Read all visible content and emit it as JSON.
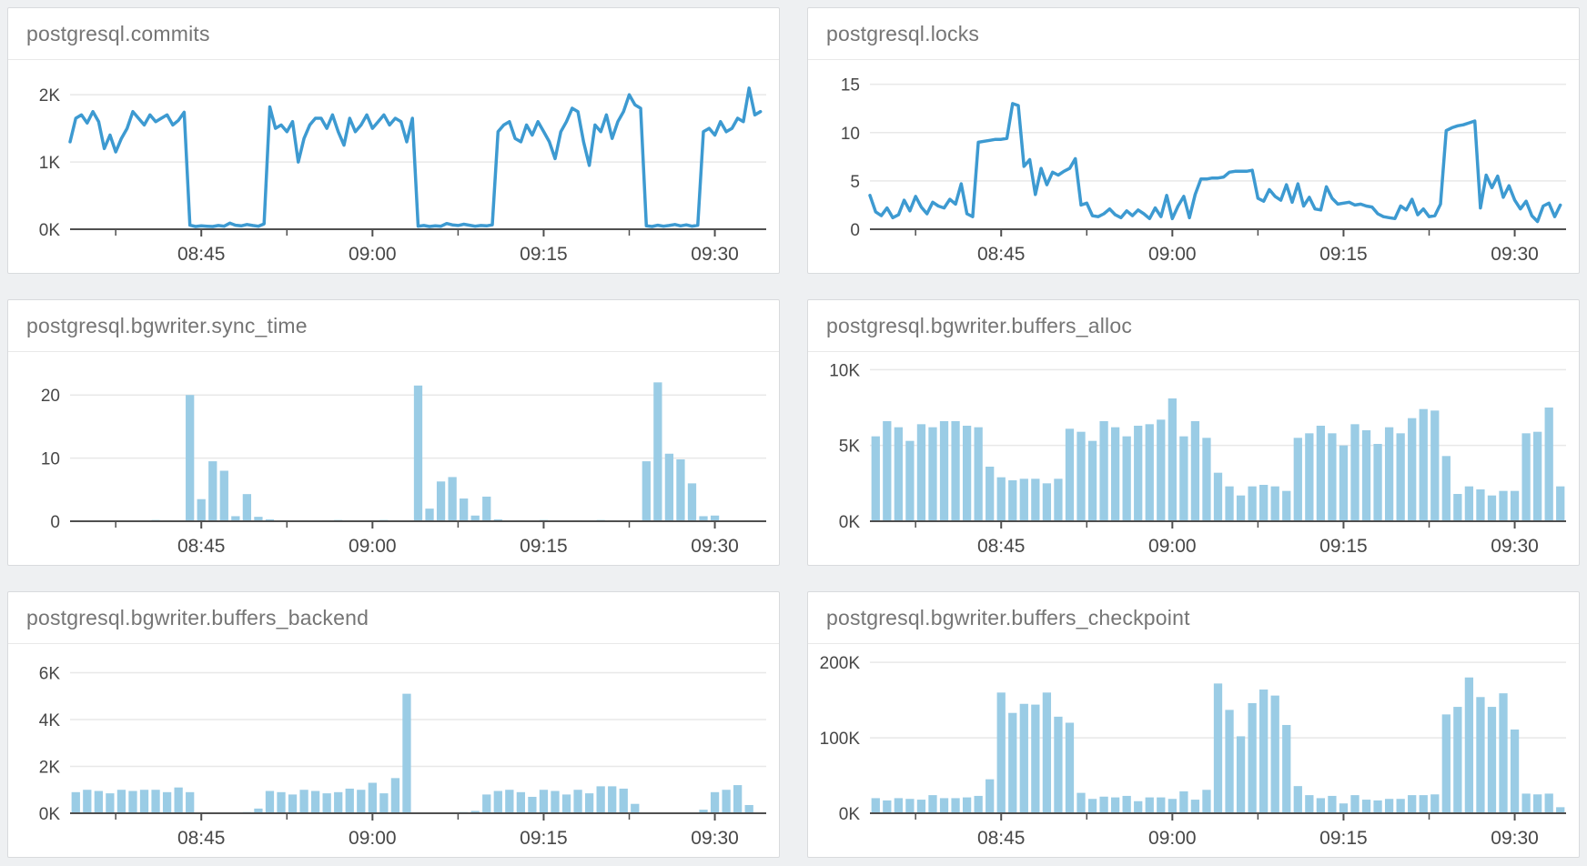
{
  "page": {
    "background_color": "#eef0f2",
    "panel_background": "#ffffff",
    "panel_border_color": "#d9dbdd",
    "title_color": "#757575",
    "axis_text_color": "#474747",
    "grid_color": "#e8e8e8",
    "axis_line_color": "#4f4f4f",
    "line_color": "#3d9ad1",
    "bar_color": "#9acce5"
  },
  "chart_data": [
    {
      "type": "line",
      "title": "postgresql.commits",
      "x_start": "08:34",
      "x_end": "09:34",
      "x_interval_seconds": 30,
      "xticks": [
        {
          "t": 11.5,
          "label": "08:45"
        },
        {
          "t": 26.5,
          "label": "09:00"
        },
        {
          "t": 41.5,
          "label": "09:15"
        },
        {
          "t": 56.5,
          "label": "09:30"
        }
      ],
      "xticks_minor": [
        4,
        19,
        34,
        49
      ],
      "yticks": [
        {
          "v": 0,
          "label": "0K"
        },
        {
          "v": 1000,
          "label": "1K"
        },
        {
          "v": 2000,
          "label": "2K"
        }
      ],
      "ymax": 2300,
      "grid": true,
      "legend": "none",
      "values": [
        1300,
        1650,
        1700,
        1580,
        1750,
        1600,
        1200,
        1400,
        1150,
        1350,
        1500,
        1750,
        1650,
        1550,
        1700,
        1600,
        1650,
        1700,
        1550,
        1620,
        1740,
        60,
        40,
        50,
        45,
        40,
        55,
        45,
        90,
        60,
        50,
        70,
        55,
        45,
        80,
        1820,
        1500,
        1550,
        1450,
        1600,
        1000,
        1350,
        1550,
        1650,
        1650,
        1500,
        1700,
        1450,
        1250,
        1650,
        1450,
        1550,
        1700,
        1500,
        1600,
        1700,
        1550,
        1650,
        1600,
        1300,
        1650,
        45,
        55,
        40,
        50,
        45,
        85,
        65,
        55,
        75,
        60,
        45,
        55,
        50,
        65,
        1450,
        1550,
        1600,
        1350,
        1300,
        1550,
        1400,
        1600,
        1450,
        1300,
        1050,
        1450,
        1600,
        1800,
        1750,
        1300,
        950,
        1550,
        1450,
        1700,
        1350,
        1600,
        1750,
        2000,
        1850,
        1800,
        50,
        40,
        60,
        45,
        55,
        70,
        50,
        65,
        45,
        60,
        1450,
        1500,
        1400,
        1600,
        1450,
        1500,
        1650,
        1600,
        2100,
        1700,
        1750
      ]
    },
    {
      "type": "line",
      "title": "postgresql.locks",
      "x_start": "08:34",
      "x_end": "09:34",
      "x_interval_seconds": 30,
      "xticks": [
        {
          "t": 11.5,
          "label": "08:45"
        },
        {
          "t": 26.5,
          "label": "09:00"
        },
        {
          "t": 41.5,
          "label": "09:15"
        },
        {
          "t": 56.5,
          "label": "09:30"
        }
      ],
      "xticks_minor": [
        4,
        19,
        34,
        49
      ],
      "yticks": [
        {
          "v": 0,
          "label": "0"
        },
        {
          "v": 5,
          "label": "5"
        },
        {
          "v": 10,
          "label": "10"
        },
        {
          "v": 15,
          "label": "15"
        }
      ],
      "ymax": 16,
      "grid": true,
      "legend": "none",
      "values": [
        3.5,
        1.8,
        1.4,
        2.2,
        1.2,
        1.5,
        3.0,
        1.9,
        3.4,
        2.3,
        1.6,
        2.8,
        2.4,
        2.2,
        3.1,
        2.6,
        4.7,
        1.6,
        1.3,
        9.0,
        9.1,
        9.2,
        9.3,
        9.3,
        9.4,
        13.0,
        12.8,
        6.5,
        7.2,
        3.6,
        6.3,
        4.6,
        5.9,
        5.6,
        6.0,
        6.3,
        7.3,
        2.5,
        2.7,
        1.4,
        1.3,
        1.6,
        2.1,
        1.5,
        1.2,
        1.9,
        1.4,
        2.0,
        1.6,
        1.1,
        2.2,
        1.3,
        3.5,
        1.1,
        2.4,
        3.4,
        1.2,
        3.6,
        5.2,
        5.2,
        5.3,
        5.3,
        5.4,
        5.9,
        6.0,
        6.0,
        6.0,
        6.1,
        3.2,
        2.9,
        4.1,
        3.4,
        3.0,
        4.6,
        2.8,
        4.7,
        2.4,
        3.3,
        2.1,
        2.0,
        4.4,
        3.2,
        2.6,
        2.7,
        2.8,
        2.5,
        2.6,
        2.4,
        2.3,
        1.6,
        1.3,
        1.2,
        1.1,
        2.4,
        2.0,
        3.1,
        1.5,
        2.1,
        1.3,
        1.4,
        2.6,
        10.2,
        10.5,
        10.7,
        10.8,
        11.0,
        11.2,
        2.2,
        5.6,
        4.3,
        5.5,
        3.3,
        4.5,
        3.0,
        2.1,
        2.9,
        1.4,
        0.8,
        2.4,
        2.7,
        1.3,
        2.5
      ]
    },
    {
      "type": "bar",
      "title": "postgresql.bgwriter.sync_time",
      "x_start": "08:34",
      "x_end": "09:34",
      "x_interval_seconds": 60,
      "xticks": [
        {
          "t": 11.5,
          "label": "08:45"
        },
        {
          "t": 26.5,
          "label": "09:00"
        },
        {
          "t": 41.5,
          "label": "09:15"
        },
        {
          "t": 56.5,
          "label": "09:30"
        }
      ],
      "xticks_minor": [
        4,
        19,
        34,
        49
      ],
      "yticks": [
        {
          "v": 0,
          "label": "0"
        },
        {
          "v": 10,
          "label": "10"
        },
        {
          "v": 20,
          "label": "20"
        }
      ],
      "ymax": 24.5,
      "grid": true,
      "legend": "none",
      "values": [
        0.15,
        0.1,
        0.15,
        0.1,
        0.15,
        0.1,
        0.15,
        0.2,
        0.15,
        0.1,
        20,
        3.5,
        9.5,
        8,
        0.8,
        4.3,
        0.7,
        0.3,
        0.15,
        0.1,
        0.15,
        0.1,
        0.15,
        0.2,
        0.15,
        0.1,
        0.15,
        0.2,
        0.15,
        0.1,
        21.5,
        2,
        6.3,
        7,
        3.6,
        0.9,
        3.9,
        0.3,
        0.1,
        0.15,
        0.1,
        0.2,
        0.15,
        0.1,
        0.15,
        0.1,
        0.2,
        0.15,
        0.1,
        0.15,
        9.5,
        22,
        10.7,
        9.8,
        6,
        0.8,
        0.9,
        0.15,
        0.1,
        0.15,
        0.1
      ]
    },
    {
      "type": "bar",
      "title": "postgresql.bgwriter.buffers_alloc",
      "x_start": "08:34",
      "x_end": "09:34",
      "x_interval_seconds": 60,
      "xticks": [
        {
          "t": 11.5,
          "label": "08:45"
        },
        {
          "t": 26.5,
          "label": "09:00"
        },
        {
          "t": 41.5,
          "label": "09:15"
        },
        {
          "t": 56.5,
          "label": "09:30"
        }
      ],
      "xticks_minor": [
        4,
        19,
        34,
        49
      ],
      "yticks": [
        {
          "v": 0,
          "label": "0K"
        },
        {
          "v": 5000,
          "label": "5K"
        },
        {
          "v": 10000,
          "label": "10K"
        }
      ],
      "ymax": 10200,
      "grid": true,
      "legend": "none",
      "values": [
        5600,
        6600,
        6200,
        5300,
        6400,
        6200,
        6600,
        6600,
        6300,
        6200,
        3600,
        2900,
        2700,
        2800,
        2800,
        2500,
        2800,
        6100,
        5900,
        5300,
        6600,
        6200,
        5600,
        6300,
        6400,
        6700,
        8100,
        5600,
        6600,
        5500,
        3200,
        2300,
        1700,
        2300,
        2400,
        2300,
        2000,
        5500,
        5800,
        6300,
        5800,
        5000,
        6400,
        6000,
        5100,
        6200,
        5800,
        6800,
        7400,
        7300,
        4300,
        1800,
        2300,
        2100,
        1700,
        2000,
        2000,
        5800,
        5900,
        7500,
        2300
      ]
    },
    {
      "type": "bar",
      "title": "postgresql.bgwriter.buffers_backend",
      "x_start": "08:34",
      "x_end": "09:34",
      "x_interval_seconds": 60,
      "xticks": [
        {
          "t": 11.5,
          "label": "08:45"
        },
        {
          "t": 26.5,
          "label": "09:00"
        },
        {
          "t": 41.5,
          "label": "09:15"
        },
        {
          "t": 56.5,
          "label": "09:30"
        }
      ],
      "xticks_minor": [
        4,
        19,
        34,
        49
      ],
      "yticks": [
        {
          "v": 0,
          "label": "0K"
        },
        {
          "v": 2000,
          "label": "2K"
        },
        {
          "v": 4000,
          "label": "4K"
        },
        {
          "v": 6000,
          "label": "6K"
        }
      ],
      "ymax": 6600,
      "grid": true,
      "legend": "none",
      "values": [
        900,
        1000,
        950,
        850,
        1000,
        950,
        1000,
        1000,
        900,
        1100,
        900,
        20,
        20,
        30,
        20,
        50,
        200,
        950,
        900,
        800,
        1000,
        950,
        850,
        900,
        1050,
        1000,
        1300,
        850,
        1500,
        5100,
        20,
        20,
        30,
        20,
        50,
        100,
        800,
        950,
        1000,
        900,
        700,
        1000,
        950,
        800,
        1000,
        850,
        1150,
        1150,
        1050,
        400,
        20,
        20,
        30,
        20,
        20,
        150,
        900,
        1000,
        1200,
        350,
        20
      ]
    },
    {
      "type": "bar",
      "title": "postgresql.bgwriter.buffers_checkpoint",
      "x_start": "08:34",
      "x_end": "09:34",
      "x_interval_seconds": 60,
      "xticks": [
        {
          "t": 11.5,
          "label": "08:45"
        },
        {
          "t": 26.5,
          "label": "09:00"
        },
        {
          "t": 41.5,
          "label": "09:15"
        },
        {
          "t": 56.5,
          "label": "09:30"
        }
      ],
      "xticks_minor": [
        4,
        19,
        34,
        49
      ],
      "yticks": [
        {
          "v": 0,
          "label": "0K"
        },
        {
          "v": 100000,
          "label": "100K"
        },
        {
          "v": 200000,
          "label": "200K"
        }
      ],
      "ymax": 205000,
      "grid": true,
      "legend": "none",
      "values": [
        20000,
        17000,
        20000,
        19000,
        18000,
        24000,
        20000,
        20000,
        21000,
        23000,
        45000,
        160000,
        133000,
        145000,
        144000,
        160000,
        128000,
        120000,
        27000,
        19000,
        22000,
        21000,
        23000,
        16000,
        21000,
        21000,
        19000,
        29000,
        18000,
        31000,
        172000,
        137000,
        102000,
        146000,
        164000,
        156000,
        117000,
        36000,
        24000,
        20000,
        23000,
        13000,
        24000,
        18000,
        17000,
        19000,
        19000,
        24000,
        24000,
        25000,
        131000,
        141000,
        180000,
        154000,
        141000,
        159000,
        111000,
        26000,
        25000,
        26000,
        8000
      ]
    }
  ]
}
